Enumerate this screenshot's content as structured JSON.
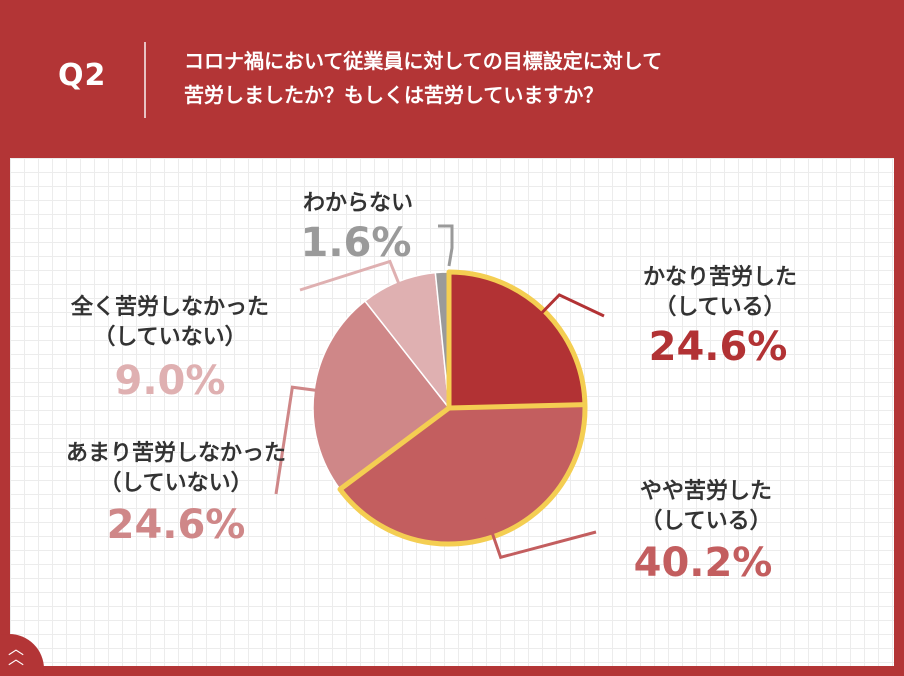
{
  "header": {
    "q_label": "Q2",
    "question_line1": "コロナ禍において従業員に対しての目標設定に対して",
    "question_line2": "苦労しましたか？もしくは苦労していますか？"
  },
  "colors": {
    "background": "#B33536",
    "slice_1": "#B23234",
    "slice_2": "#C35E5F",
    "slice_3": "#CF8788",
    "slice_4": "#DFB0B1",
    "slice_5": "#9A9A9A",
    "highlight_outline": "#F4CE52"
  },
  "chart_data": {
    "type": "pie",
    "slices": [
      {
        "label_line1": "かなり苦労した",
        "label_line2": "（している）",
        "value": 24.6,
        "value_label": "24.6%",
        "highlighted": true
      },
      {
        "label_line1": "やや苦労した",
        "label_line2": "（している）",
        "value": 40.2,
        "value_label": "40.2%",
        "highlighted": true
      },
      {
        "label_line1": "あまり苦労しなかった",
        "label_line2": "（していない）",
        "value": 24.6,
        "value_label": "24.6%",
        "highlighted": false
      },
      {
        "label_line1": "全く苦労しなかった",
        "label_line2": "（していない）",
        "value": 9.0,
        "value_label": "9.0%",
        "highlighted": false
      },
      {
        "label_line1": "わからない",
        "label_line2": "",
        "value": 1.6,
        "value_label": "1.6%",
        "highlighted": false
      }
    ]
  }
}
